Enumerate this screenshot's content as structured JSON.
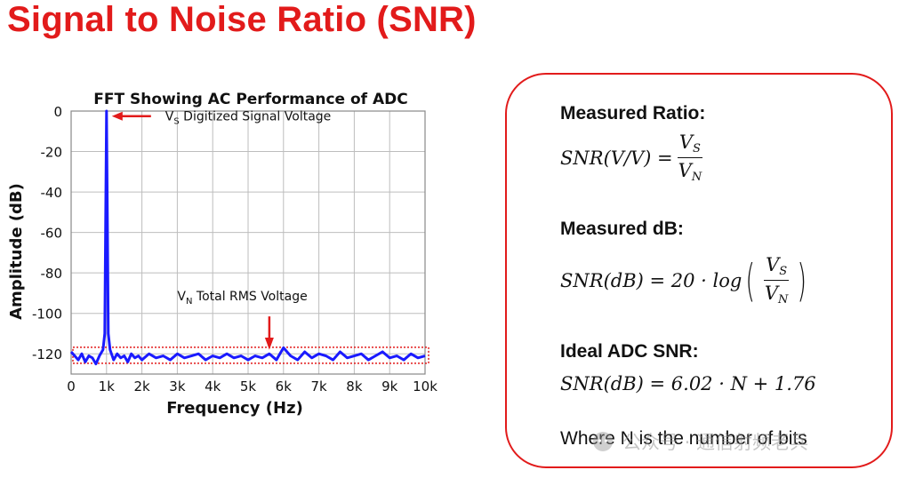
{
  "page_title": "Signal to Noise Ratio (SNR)",
  "chart_data": {
    "type": "line",
    "title": "FFT Showing AC Performance of ADC",
    "xlabel": "Frequency (Hz)",
    "ylabel": "Amplitude (dB)",
    "x_ticks": [
      "0",
      "1k",
      "2k",
      "3k",
      "4k",
      "5k",
      "6k",
      "7k",
      "8k",
      "9k",
      "10k"
    ],
    "y_ticks": [
      "0",
      "-20",
      "-40",
      "-60",
      "-80",
      "-100",
      "-120"
    ],
    "xlim": [
      0,
      10000
    ],
    "ylim": [
      -130,
      0
    ],
    "grid": true,
    "series": [
      {
        "x": [
          0,
          100,
          200,
          300,
          400,
          500,
          600,
          700,
          800,
          900,
          950,
          1000,
          1050,
          1100,
          1200,
          1300,
          1400,
          1500,
          1600,
          1700,
          1800,
          1900,
          2000,
          2200,
          2400,
          2600,
          2800,
          3000,
          3200,
          3400,
          3600,
          3800,
          4000,
          4200,
          4400,
          4600,
          4800,
          5000,
          5200,
          5400,
          5600,
          5800,
          6000,
          6200,
          6400,
          6600,
          6800,
          7000,
          7200,
          7400,
          7600,
          7800,
          8000,
          8200,
          8400,
          8600,
          8800,
          9000,
          9200,
          9400,
          9600,
          9800,
          10000
        ],
        "y": [
          -119,
          -121,
          -123,
          -120,
          -124,
          -121,
          -122,
          -125,
          -121,
          -118,
          -110,
          0,
          -110,
          -118,
          -123,
          -120,
          -122,
          -121,
          -124,
          -120,
          -122,
          -121,
          -123,
          -120,
          -122,
          -121,
          -123,
          -120,
          -122,
          -121,
          -120,
          -123,
          -121,
          -122,
          -120,
          -122,
          -121,
          -123,
          -121,
          -122,
          -120,
          -123,
          -117,
          -121,
          -123,
          -119,
          -122,
          -120,
          -121,
          -123,
          -119,
          -122,
          -121,
          -120,
          -123,
          -121,
          -119,
          -122,
          -121,
          -123,
          -120,
          -122,
          -121
        ]
      }
    ],
    "annotations": {
      "signal_main": "V",
      "signal_sub": "S",
      "signal_rest": " Digitized Signal Voltage",
      "noise_main": "V",
      "noise_sub": "N",
      "noise_rest": " Total RMS Voltage"
    },
    "colors": {
      "trace": "#1a1aff",
      "arrow": "#e21b1b",
      "noise_box": "#e21b1b",
      "grid": "#bdbdbd"
    }
  },
  "panel": {
    "measured_ratio_heading": "Measured Ratio:",
    "measured_db_heading": "Measured dB:",
    "ideal_heading": "Ideal ADC SNR:",
    "eq1_lhs": "SNR(V/V) =",
    "eq2_lhs": "SNR(dB) = 20 · log",
    "eq3": "SNR(dB) = 6.02 · N + 1.76",
    "frac_num": "V",
    "frac_num_sub": "S",
    "frac_den": "V",
    "frac_den_sub": "N",
    "note": "Where N is the number of bits"
  },
  "watermark": "公众号 · 通信射频老兵"
}
